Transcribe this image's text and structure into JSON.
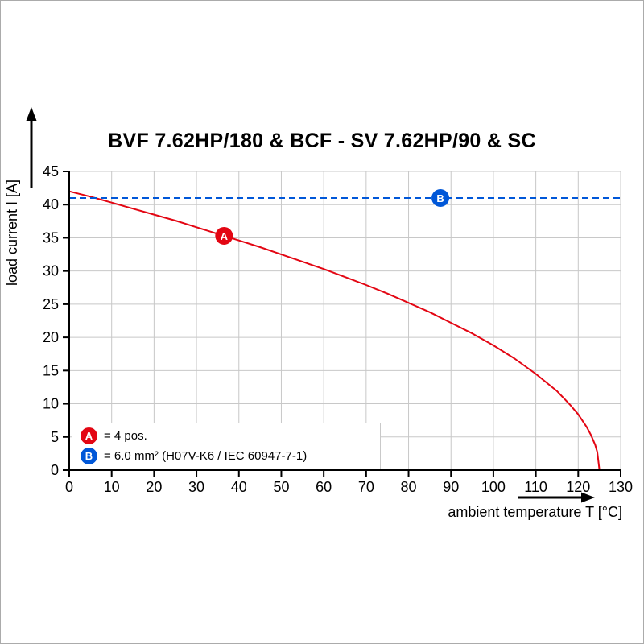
{
  "page": {
    "background": "#ffffff",
    "border_color": "#ababab"
  },
  "chart_data": {
    "type": "line",
    "title": "BVF 7.62HP/180 & BCF - SV 7.62HP/90 & SC",
    "xlabel": "ambient temperature T [°C]",
    "ylabel": "load current I [A]",
    "xlim": [
      0,
      130
    ],
    "ylim": [
      0,
      45
    ],
    "x_ticks": [
      0,
      10,
      20,
      30,
      40,
      50,
      60,
      70,
      80,
      90,
      100,
      110,
      120,
      130
    ],
    "y_ticks": [
      0,
      5,
      10,
      15,
      20,
      25,
      30,
      35,
      40,
      45
    ],
    "grid": true,
    "grid_color": "#c8c8c8",
    "axis_color": "#000000",
    "legend_position": "bottom-left-inside",
    "series": [
      {
        "name": "A",
        "label": "= 4 pos.",
        "color": "#e30613",
        "style": "solid",
        "marker": {
          "x": 36.5,
          "y": 35.3
        },
        "points": [
          [
            0,
            42.0
          ],
          [
            5,
            41.2
          ],
          [
            10,
            40.3
          ],
          [
            15,
            39.4
          ],
          [
            20,
            38.5
          ],
          [
            25,
            37.6
          ],
          [
            30,
            36.6
          ],
          [
            35,
            35.6
          ],
          [
            40,
            34.6
          ],
          [
            45,
            33.6
          ],
          [
            50,
            32.5
          ],
          [
            55,
            31.4
          ],
          [
            60,
            30.3
          ],
          [
            65,
            29.1
          ],
          [
            70,
            27.9
          ],
          [
            75,
            26.6
          ],
          [
            80,
            25.2
          ],
          [
            85,
            23.8
          ],
          [
            90,
            22.2
          ],
          [
            95,
            20.6
          ],
          [
            100,
            18.8
          ],
          [
            105,
            16.8
          ],
          [
            110,
            14.5
          ],
          [
            115,
            11.9
          ],
          [
            118,
            9.9
          ],
          [
            120,
            8.4
          ],
          [
            122,
            6.5
          ],
          [
            123,
            5.3
          ],
          [
            124,
            3.8
          ],
          [
            124.5,
            2.7
          ],
          [
            125,
            0
          ]
        ]
      },
      {
        "name": "B",
        "label": "= 6.0 mm² (H07V-K6 / IEC 60947-7-1)",
        "color": "#0057d8",
        "style": "dashed",
        "marker": {
          "x": 87.5,
          "y": 41
        },
        "points": [
          [
            0,
            41
          ],
          [
            130,
            41
          ]
        ]
      }
    ]
  }
}
